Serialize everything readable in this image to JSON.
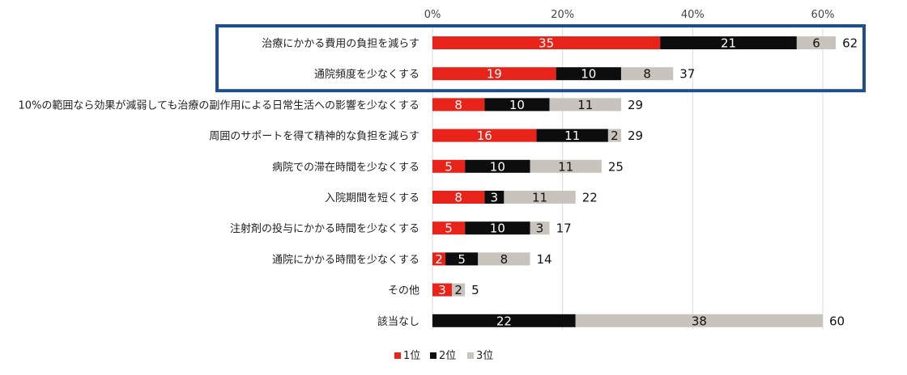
{
  "chart_data": {
    "type": "bar",
    "orientation": "horizontal",
    "stacked": true,
    "title": "",
    "xlabel": "",
    "ylabel": "",
    "xlim": [
      0,
      60
    ],
    "x_ticks": [
      0,
      20,
      40,
      60
    ],
    "x_tick_labels": [
      "0%",
      "20%",
      "40%",
      "60%"
    ],
    "grid": true,
    "legend_position": "bottom",
    "categories": [
      "治療にかかる費用の負担を減らす",
      "通院頻度を少なくする",
      "10%の範囲なら効果が減弱しても治療の副作用による日常生活への影響を少なくする",
      "周囲のサポートを得て精神的な負担を減らす",
      "病院での滞在時間を少なくする",
      "入院期間を短くする",
      "注射剤の投与にかかる時間を少なくする",
      "通院にかかる時間を少なくする",
      "その他",
      "該当なし"
    ],
    "series": [
      {
        "name": "1位",
        "color": "#e8231a",
        "label_color": "#ffffff",
        "values": [
          35,
          19,
          8,
          16,
          5,
          8,
          5,
          2,
          3,
          0
        ]
      },
      {
        "name": "2位",
        "color": "#0d0d0d",
        "label_color": "#ffffff",
        "values": [
          21,
          10,
          10,
          11,
          10,
          3,
          10,
          5,
          0,
          22
        ]
      },
      {
        "name": "3位",
        "color": "#c8c3bd",
        "label_color": "#111111",
        "values": [
          6,
          8,
          11,
          2,
          11,
          11,
          3,
          8,
          2,
          38
        ]
      }
    ],
    "totals": [
      62,
      37,
      29,
      29,
      25,
      22,
      17,
      14,
      5,
      60
    ],
    "highlight": {
      "categories": [
        0,
        1
      ],
      "color": "#1f4e8c"
    }
  }
}
